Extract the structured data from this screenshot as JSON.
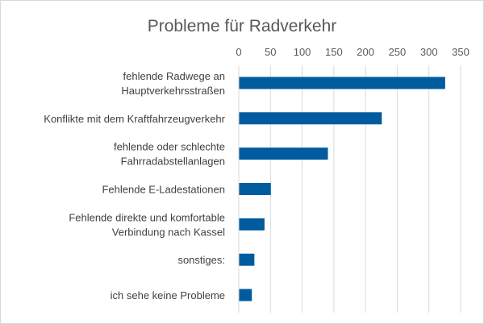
{
  "chart_data": {
    "type": "bar",
    "orientation": "horizontal",
    "title": "Probleme für Radverkehr",
    "categories": [
      [
        "fehlende Radwege an",
        "Hauptverkehrsstraßen"
      ],
      [
        "Konflikte mit dem Kraftfahrzeugverkehr"
      ],
      [
        "fehlende oder schlechte",
        "Fahrradabstellanlagen"
      ],
      [
        "Fehlende E-Ladestationen"
      ],
      [
        "Fehlende direkte und komfortable",
        "Verbindung nach Kassel"
      ],
      [
        "sonstiges:"
      ],
      [
        "ich sehe keine Probleme"
      ]
    ],
    "values": [
      325,
      225,
      140,
      50,
      40,
      24,
      20
    ],
    "xlim": [
      0,
      350
    ],
    "xticks": [
      "0",
      "50",
      "100",
      "150",
      "200",
      "250",
      "300",
      "350"
    ],
    "x_axis_position": "top",
    "grid": true,
    "bar_color": "#005b9f",
    "legend": "none"
  }
}
